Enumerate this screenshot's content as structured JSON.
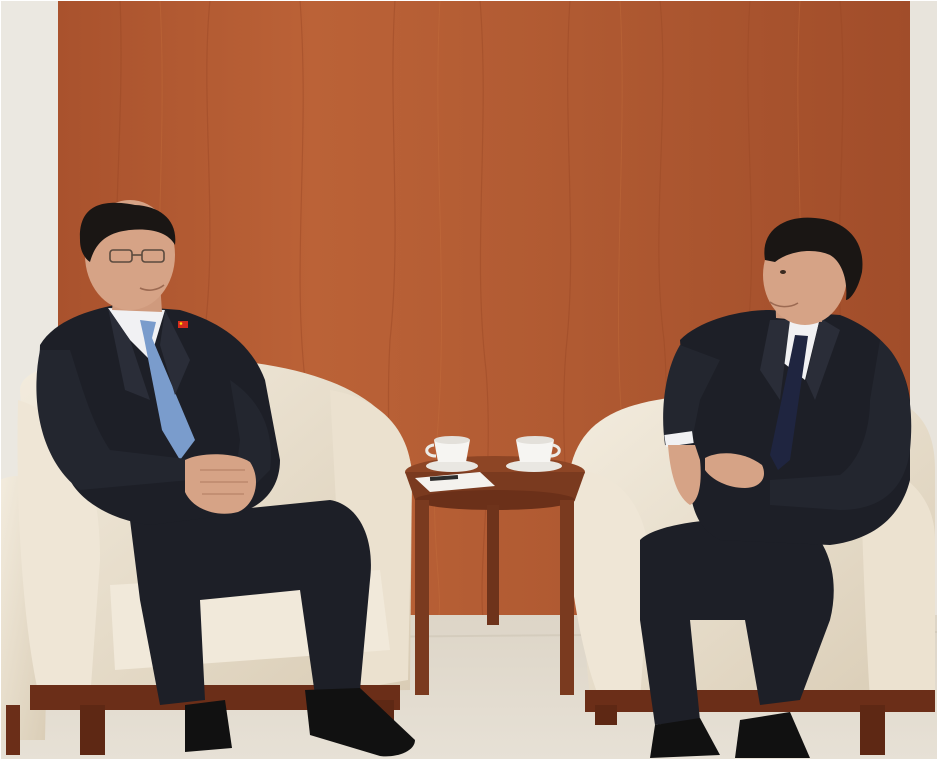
{
  "scene": {
    "description_hidden": "",
    "colors": {
      "left_wall": "#ebe8e1",
      "wood_panel": "#b35a33",
      "wood_panel_dark": "#8e4122",
      "wood_panel_light": "#c26a3f",
      "carpet": "#d8d1c3",
      "carpet_light": "#e6e0d4",
      "armchair": "#ede4d3",
      "armchair_shadow": "#d4c8b2",
      "armchair_wood": "#6b2e18",
      "table_wood": "#7a3a1f",
      "table_top": "#8d4525",
      "suit": "#1d1f27",
      "suit_highlight": "#2c2f3a",
      "skin": "#d6a386",
      "hair": "#1a1614",
      "shirt": "#f1f1f3",
      "tie_left": "#7a9ccc",
      "tie_right": "#1f2540",
      "cup": "#f6f5f2",
      "shoe": "#111111"
    },
    "icons": [
      "china-flag-pin-icon"
    ]
  }
}
